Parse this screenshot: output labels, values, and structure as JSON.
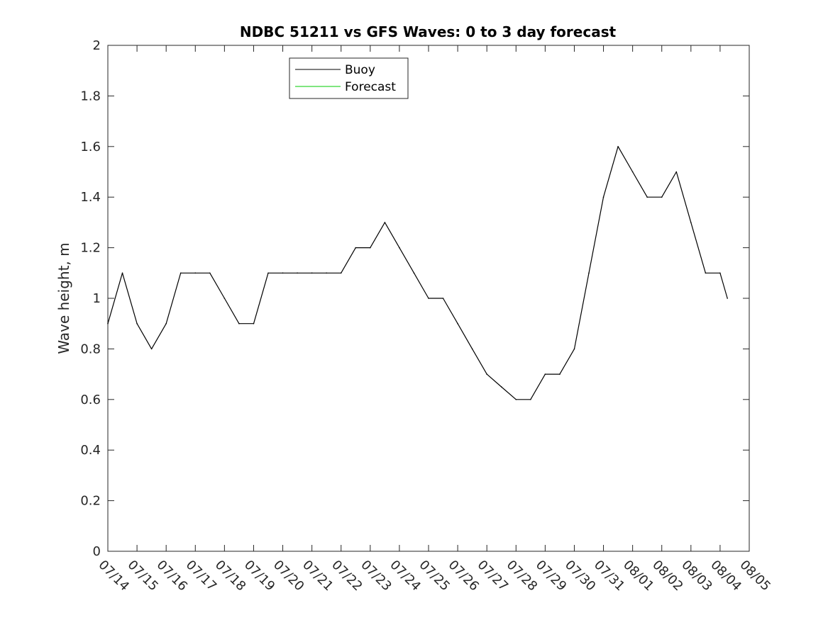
{
  "chart_data": {
    "type": "line",
    "title": "NDBC 51211 vs GFS Waves: 0 to 3 day forecast",
    "ylabel": "Wave height, m",
    "xlabel": "",
    "xlim": [
      "07/14",
      "08/05"
    ],
    "ylim": [
      0,
      2
    ],
    "x_tick_labels": [
      "07/14",
      "07/15",
      "07/16",
      "07/17",
      "07/18",
      "07/19",
      "07/20",
      "07/21",
      "07/22",
      "07/23",
      "07/24",
      "07/25",
      "07/26",
      "07/27",
      "07/28",
      "07/29",
      "07/30",
      "07/31",
      "08/01",
      "08/02",
      "08/03",
      "08/04",
      "08/05"
    ],
    "y_tick_labels": [
      "0",
      "0.2",
      "0.4",
      "0.6",
      "0.8",
      "1",
      "1.2",
      "1.4",
      "1.6",
      "1.8",
      "2"
    ],
    "grid": false,
    "legend_position": "top-center",
    "series": [
      {
        "name": "Buoy",
        "color": "#000000",
        "x": [
          "07/14",
          "07/14 12:00",
          "07/15",
          "07/15 12:00",
          "07/16",
          "07/16 12:00",
          "07/17",
          "07/17 12:00",
          "07/18",
          "07/18 12:00",
          "07/19",
          "07/19 12:00",
          "07/20",
          "07/20 12:00",
          "07/21",
          "07/21 12:00",
          "07/22",
          "07/22 12:00",
          "07/23",
          "07/23 12:00",
          "07/24",
          "07/24 12:00",
          "07/25",
          "07/25 12:00",
          "07/26",
          "07/26 12:00",
          "07/27",
          "07/27 12:00",
          "07/28",
          "07/28 12:00",
          "07/29",
          "07/29 12:00",
          "07/30",
          "07/30 12:00",
          "07/31",
          "07/31 12:00",
          "08/01",
          "08/01 12:00",
          "08/02",
          "08/02 12:00",
          "08/03",
          "08/03 12:00",
          "08/04",
          "08/04 06:00"
        ],
        "y": [
          0.9,
          1.1,
          0.9,
          0.8,
          0.9,
          1.1,
          1.1,
          1.1,
          1.0,
          0.9,
          0.9,
          1.1,
          1.1,
          1.1,
          1.1,
          1.1,
          1.1,
          1.2,
          1.2,
          1.3,
          1.2,
          1.1,
          1.0,
          1.0,
          0.9,
          0.8,
          0.7,
          0.65,
          0.6,
          0.6,
          0.7,
          0.7,
          0.8,
          1.1,
          1.4,
          1.6,
          1.5,
          1.4,
          1.4,
          1.5,
          1.3,
          1.1,
          1.1,
          1.0
        ]
      },
      {
        "name": "Forecast",
        "color": "#00cc00",
        "x": [],
        "y": []
      }
    ]
  }
}
